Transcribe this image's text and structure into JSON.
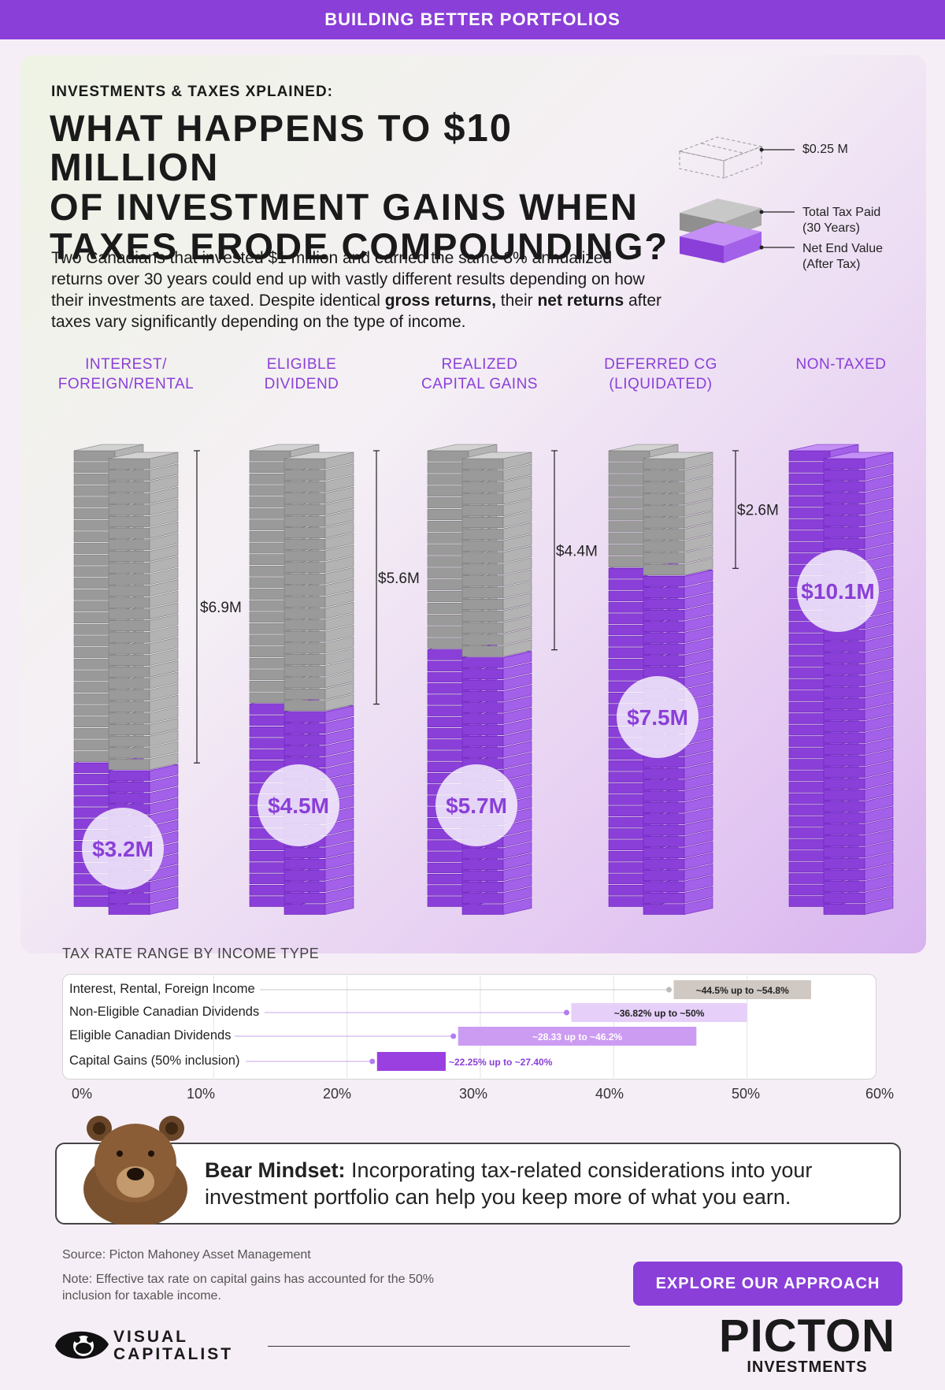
{
  "banner": "BUILDING BETTER PORTFOLIOS",
  "kicker": "INVESTMENTS & TAXES XPLAINED:",
  "title": {
    "line1_a": "WHAT HAPPENS TO ",
    "line1_b": "$10 MILLION",
    "line2": "OF INVESTMENT GAINS WHEN",
    "line3": "TAXES ERODE COMPOUNDING?"
  },
  "intro": {
    "part1": "Two Canadians that invested $1 million and earned the same 8% annualized returns over 30 years could end up with vastly different results depending on how their investments are taxed. Despite identical ",
    "bold1": "gross returns,",
    "part2": " their ",
    "bold2": "net returns",
    "part3": " after taxes vary significantly depending on the type of income."
  },
  "legend": {
    "unit": "$0.25 M",
    "tax_paid_1": "Total Tax Paid",
    "tax_paid_2": "(30 Years)",
    "net_1": "Net End Value",
    "net_2": "(After Tax)"
  },
  "colors": {
    "purple": "#8a3fd8",
    "purple_light": "#b47cf0",
    "gray": "#8f8f8f",
    "gray_light": "#bdbdbd"
  },
  "chart_data": [
    {
      "type": "bar",
      "title": "",
      "categories": [
        [
          "INTEREST/",
          "FOREIGN/RENTAL"
        ],
        [
          "ELIGIBLE",
          "DIVIDEND"
        ],
        [
          "REALIZED",
          "CAPITAL GAINS"
        ],
        [
          "DEFERRED CG",
          "(LIQUIDATED)"
        ],
        [
          "NON-TAXED",
          ""
        ]
      ],
      "series": [
        {
          "name": "Net End Value (After Tax)",
          "values": [
            3.2,
            4.5,
            5.7,
            7.5,
            10.1
          ],
          "labels": [
            "$3.2M",
            "$4.5M",
            "$5.7M",
            "$7.5M",
            "$10.1M"
          ]
        },
        {
          "name": "Total Tax Paid (30 Years)",
          "values": [
            6.9,
            5.6,
            4.4,
            2.6,
            0
          ],
          "labels": [
            "$6.9M",
            "$5.6M",
            "$4.4M",
            "$2.6M",
            ""
          ]
        }
      ],
      "stacked": true,
      "unit": "$0.25 M per bundle"
    },
    {
      "type": "bar",
      "orientation": "horizontal-range",
      "title": "TAX RATE RANGE BY INCOME TYPE",
      "categories": [
        "Interest, Rental, Foreign Income",
        "Non-Eligible Canadian Dividends",
        "Eligible Canadian Dividends",
        "Capital Gains (50% inclusion)"
      ],
      "ranges": [
        {
          "low": 44.5,
          "high": 54.8,
          "label": "~44.5% up to ~54.8%",
          "color": "#cfc8c3",
          "text_color": "#222"
        },
        {
          "low": 36.82,
          "high": 50,
          "label": "~36.82% up to ~50%",
          "color": "#e6d0f9",
          "text_color": "#222"
        },
        {
          "low": 28.33,
          "high": 46.2,
          "label": "~28.33 up to ~46.2%",
          "color": "#cc9cf3",
          "text_color": "#ffffff"
        },
        {
          "low": 22.25,
          "high": 27.4,
          "label": "~22.25% up to ~27.40%",
          "color": "#9a3fe0",
          "text_color": "#8a3fd8"
        }
      ],
      "xlim": [
        0,
        60
      ],
      "xticks": [
        "0%",
        "10%",
        "20%",
        "30%",
        "40%",
        "50%",
        "60%"
      ]
    }
  ],
  "bear": {
    "bold": "Bear Mindset:",
    "text": " Incorporating tax-related considerations into your investment portfolio can help you keep more of what you earn."
  },
  "footer": {
    "source": "Source: Picton Mahoney Asset Management",
    "note": "Note: Effective tax rate on capital gains has accounted for the 50% inclusion for taxable income.",
    "cta": "EXPLORE OUR APPROACH",
    "vc_line1": "VISUAL",
    "vc_line2": "CAPITALIST",
    "brand": "PICTON",
    "brand_sub": "INVESTMENTS"
  }
}
